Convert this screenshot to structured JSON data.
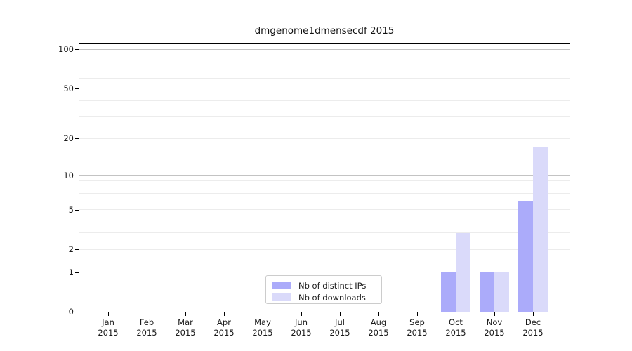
{
  "chart_data": {
    "type": "bar",
    "title": "dmgenome1dmensecdf 2015",
    "categories": [
      "Jan 2015",
      "Feb 2015",
      "Mar 2015",
      "Apr 2015",
      "May 2015",
      "Jun 2015",
      "Jul 2015",
      "Aug 2015",
      "Sep 2015",
      "Oct 2015",
      "Nov 2015",
      "Dec 2015"
    ],
    "series": [
      {
        "name": "Nb of distinct IPs",
        "color": "#ababfa",
        "values": [
          0,
          0,
          0,
          0,
          0,
          0,
          0,
          0,
          0,
          1,
          1,
          6
        ]
      },
      {
        "name": "Nb of downloads",
        "color": "#dadafa",
        "values": [
          0,
          0,
          0,
          0,
          0,
          0,
          0,
          0,
          0,
          3,
          1,
          17
        ]
      }
    ],
    "xlabel": "",
    "ylabel": "",
    "y_scale": "log1p",
    "y_ticks": [
      0,
      1,
      2,
      5,
      10,
      20,
      50,
      100
    ],
    "y_major_gridlines": [
      1,
      10,
      100
    ],
    "y_minor_gridlines": [
      2,
      3,
      4,
      5,
      6,
      7,
      8,
      9,
      20,
      30,
      40,
      50,
      60,
      70,
      80,
      90
    ],
    "ylim": [
      0,
      112
    ],
    "grid": true,
    "legend_position": "bottom-center"
  },
  "colors": {
    "bar_distinct_ips": "#ababfa",
    "bar_downloads": "#dadafa",
    "grid_major": "#c3c3c3",
    "grid_minor": "#ececec",
    "axis": "#000000",
    "text": "#1a1a1a",
    "legend_border": "#cccccc",
    "background": "#ffffff"
  }
}
